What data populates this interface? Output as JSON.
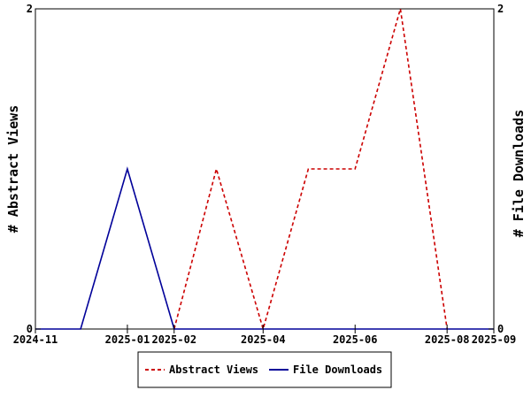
{
  "chart_data": {
    "type": "line",
    "title": "",
    "x": [
      "2024-11",
      "2024-12",
      "2025-01",
      "2025-02",
      "2025-03",
      "2025-04",
      "2025-05",
      "2025-06",
      "2025-07",
      "2025-08",
      "2025-09"
    ],
    "x_ticks": [
      "2024-11",
      "2025-01",
      "2025-02",
      "2025-04",
      "2025-06",
      "2025-08",
      "2025-09"
    ],
    "xlim": [
      "2024-11",
      "2025-09"
    ],
    "ylabel_left": "# Abstract Views",
    "ylabel_right": "# File Downloads",
    "ylim_left": [
      0,
      2
    ],
    "ylim_right": [
      0,
      2
    ],
    "yticks_left": [
      "0",
      "2"
    ],
    "yticks_right": [
      "0",
      "2"
    ],
    "grid": false,
    "legend_position": "bottom",
    "series": [
      {
        "name": "Abstract Views",
        "axis": "left",
        "color": "#cc0000",
        "dash": "dashed",
        "points": [
          [
            "2025-02-01",
            0
          ],
          [
            "2025-03-01",
            1
          ],
          [
            "2025-04-01",
            0
          ],
          [
            "2025-05-01",
            1
          ],
          [
            "2025-06-01",
            1
          ],
          [
            "2025-07-01",
            2
          ],
          [
            "2025-08-01",
            0
          ]
        ]
      },
      {
        "name": "File Downloads",
        "axis": "right",
        "color": "#000099",
        "dash": "solid",
        "points": [
          [
            "2024-11-01",
            0
          ],
          [
            "2024-12-01",
            0
          ],
          [
            "2025-01-01",
            1
          ],
          [
            "2025-02-01",
            0
          ],
          [
            "2025-03-01",
            0
          ],
          [
            "2025-04-01",
            0
          ],
          [
            "2025-05-01",
            0
          ],
          [
            "2025-06-01",
            0
          ],
          [
            "2025-07-01",
            0
          ],
          [
            "2025-08-01",
            0
          ],
          [
            "2025-09-01",
            0
          ]
        ]
      }
    ]
  }
}
